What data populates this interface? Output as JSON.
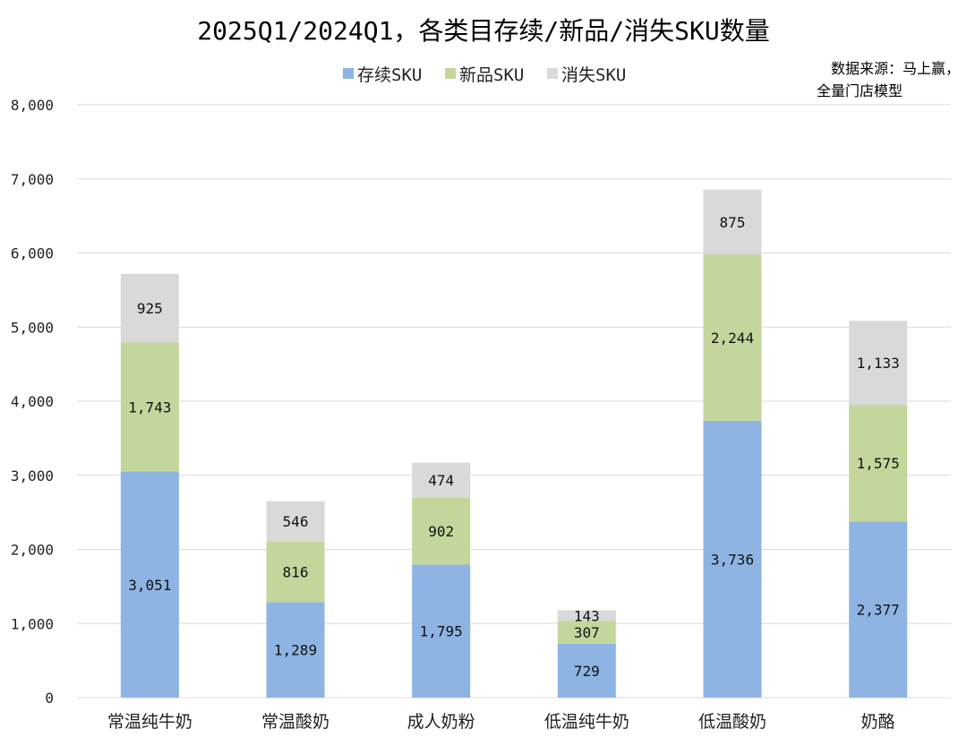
{
  "chart_data": {
    "type": "bar",
    "stacked": true,
    "title": "2025Q1/2024Q1，各类目存续/新品/消失SKU数量",
    "note_lines": [
      "数据来源：马上赢，",
      "全量门店模型"
    ],
    "categories": [
      "常温纯牛奶",
      "常温酸奶",
      "成人奶粉",
      "低温纯牛奶",
      "低温酸奶",
      "奶酪"
    ],
    "series": [
      {
        "name": "存续SKU",
        "color": "#8eb4e3",
        "values": [
          3051,
          1289,
          1795,
          729,
          3736,
          2377
        ]
      },
      {
        "name": "新品SKU",
        "color": "#c3d69b",
        "values": [
          1743,
          816,
          902,
          307,
          2244,
          1575
        ]
      },
      {
        "name": "消失SKU",
        "color": "#d9d9d9",
        "values": [
          925,
          546,
          474,
          143,
          875,
          1133
        ]
      }
    ],
    "ylim": [
      0,
      8000
    ],
    "yticks": [
      0,
      1000,
      2000,
      3000,
      4000,
      5000,
      6000,
      7000,
      8000
    ],
    "ytick_labels": [
      "0",
      "1,000",
      "2,000",
      "3,000",
      "4,000",
      "5,000",
      "6,000",
      "7,000",
      "8,000"
    ],
    "data_labels": [
      [
        "3,051",
        "1,289",
        "1,795",
        "729",
        "3,736",
        "2,377"
      ],
      [
        "1,743",
        "816",
        "902",
        "307",
        "2,244",
        "1,575"
      ],
      [
        "925",
        "546",
        "474",
        "143",
        "875",
        "1,133"
      ]
    ],
    "grid": true,
    "legend_position": "top"
  }
}
